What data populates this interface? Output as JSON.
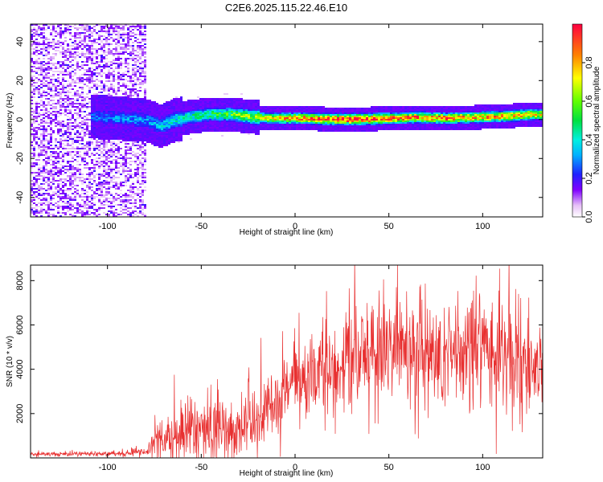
{
  "title": "C2E6.2025.115.22.46.E10",
  "chart_data": [
    {
      "type": "heatmap",
      "xlabel": "Height of straight line (km)",
      "ylabel": "Frequency (Hz)",
      "xlim": [
        -141,
        132
      ],
      "ylim": [
        -50,
        49
      ],
      "xticks": [
        -100,
        -50,
        0,
        50,
        100
      ],
      "yticks": [
        -40,
        -20,
        0,
        20,
        40
      ],
      "colorbar": {
        "label": "Normalized spectral amplitude",
        "range": [
          0,
          1
        ],
        "ticks": [
          "0.0",
          "0.2",
          "0.4",
          "0.6",
          "0.8"
        ],
        "tick_values": [
          0.0,
          0.2,
          0.4,
          0.6,
          0.8
        ]
      },
      "noise_region": {
        "x": [
          -141,
          -80
        ],
        "y": [
          -50,
          49
        ],
        "level": 0.15
      },
      "ridge": [
        {
          "x": -110,
          "y": 2,
          "amp": 0.25
        },
        {
          "x": -95,
          "y": 1,
          "amp": 0.3
        },
        {
          "x": -80,
          "y": 0,
          "amp": 0.3
        },
        {
          "x": -72,
          "y": -3,
          "amp": 0.35
        },
        {
          "x": -65,
          "y": 0,
          "amp": 0.4
        },
        {
          "x": -55,
          "y": 2,
          "amp": 0.45
        },
        {
          "x": -45,
          "y": 3,
          "amp": 0.5
        },
        {
          "x": -35,
          "y": 3,
          "amp": 0.55
        },
        {
          "x": -25,
          "y": 2,
          "amp": 0.6
        },
        {
          "x": -15,
          "y": 1,
          "amp": 0.7
        },
        {
          "x": -5,
          "y": 1,
          "amp": 0.8
        },
        {
          "x": 5,
          "y": 1,
          "amp": 0.85
        },
        {
          "x": 20,
          "y": 0.5,
          "amp": 0.95
        },
        {
          "x": 35,
          "y": 0.5,
          "amp": 0.95
        },
        {
          "x": 50,
          "y": 1,
          "amp": 0.9
        },
        {
          "x": 65,
          "y": 1.5,
          "amp": 0.85
        },
        {
          "x": 80,
          "y": 1,
          "amp": 0.85
        },
        {
          "x": 95,
          "y": 1.5,
          "amp": 0.8
        },
        {
          "x": 110,
          "y": 2,
          "amp": 0.8
        },
        {
          "x": 125,
          "y": 3,
          "amp": 0.75
        },
        {
          "x": 132,
          "y": 3,
          "amp": 0.7
        }
      ]
    },
    {
      "type": "line",
      "xlabel": "Height of straight line (km)",
      "ylabel": "SNR (10 * v/v)",
      "xlim": [
        -141,
        132
      ],
      "ylim": [
        0,
        8700
      ],
      "xticks": [
        -100,
        -50,
        0,
        50,
        100
      ],
      "yticks": [
        2000,
        4000,
        6000,
        8000
      ],
      "color": "#e83030",
      "envelope": {
        "x": [
          -141,
          -100,
          -80,
          -75,
          -70,
          -60,
          -50,
          -45,
          -40,
          -35,
          -30,
          -25,
          -20,
          -15,
          -10,
          -5,
          0,
          10,
          20,
          30,
          40,
          50,
          60,
          70,
          80,
          90,
          100,
          110,
          120,
          132
        ],
        "mean": [
          150,
          200,
          250,
          700,
          800,
          1000,
          1300,
          1500,
          1400,
          1200,
          1300,
          1600,
          1800,
          2000,
          2400,
          3000,
          3400,
          3700,
          4000,
          4300,
          4800,
          5000,
          4800,
          4700,
          4600,
          4700,
          4800,
          4500,
          4300,
          4200
        ],
        "spread": [
          60,
          80,
          100,
          500,
          600,
          800,
          1000,
          1200,
          1100,
          900,
          800,
          900,
          1000,
          1000,
          1000,
          1100,
          1200,
          1300,
          1400,
          1500,
          1700,
          1800,
          1700,
          1700,
          1600,
          1700,
          1700,
          1500,
          1300,
          1200
        ]
      }
    }
  ]
}
